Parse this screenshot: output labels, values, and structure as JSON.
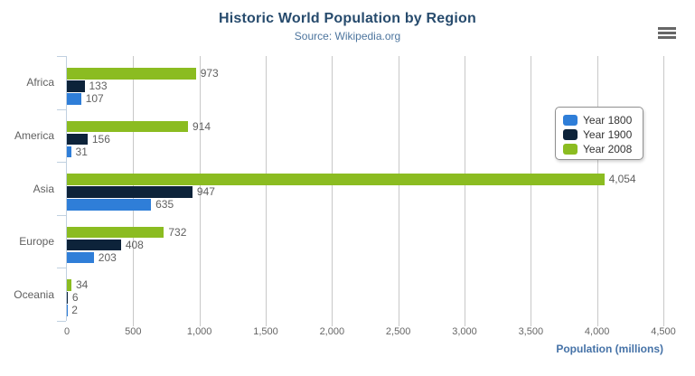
{
  "chart_data": {
    "type": "bar",
    "orientation": "horizontal",
    "title": "Historic World Population by Region",
    "subtitle": "Source: Wikipedia.org",
    "categories": [
      "Africa",
      "America",
      "Asia",
      "Europe",
      "Oceania"
    ],
    "series": [
      {
        "name": "Year 1800",
        "color": "#2f7ed8",
        "values": [
          107,
          31,
          635,
          203,
          2
        ]
      },
      {
        "name": "Year 1900",
        "color": "#0d233a",
        "values": [
          133,
          156,
          947,
          408,
          6
        ]
      },
      {
        "name": "Year 2008",
        "color": "#8bbc21",
        "values": [
          973,
          914,
          4054,
          732,
          34
        ]
      }
    ],
    "xlabel": "Population (millions)",
    "ylabel": "",
    "xlim": [
      0,
      4500
    ],
    "tick_interval": 500,
    "tick_labels": [
      "0",
      "500",
      "1,000",
      "1,500",
      "2,000",
      "2,500",
      "3,000",
      "3,500",
      "4,000",
      "4,500"
    ],
    "grid": true,
    "legend_position": "right",
    "data_labels": true
  },
  "toolbar": {
    "context_menu_icon": "hamburger-menu-icon"
  }
}
